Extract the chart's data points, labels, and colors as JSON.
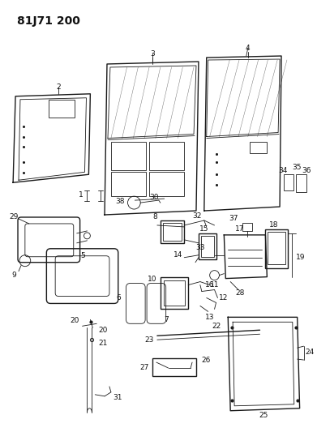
{
  "title": "81J71 200",
  "background_color": "#ffffff",
  "line_color": "#1a1a1a",
  "label_color": "#111111",
  "label_fontsize": 6.5,
  "figsize": [
    3.91,
    5.33
  ],
  "dpi": 100
}
